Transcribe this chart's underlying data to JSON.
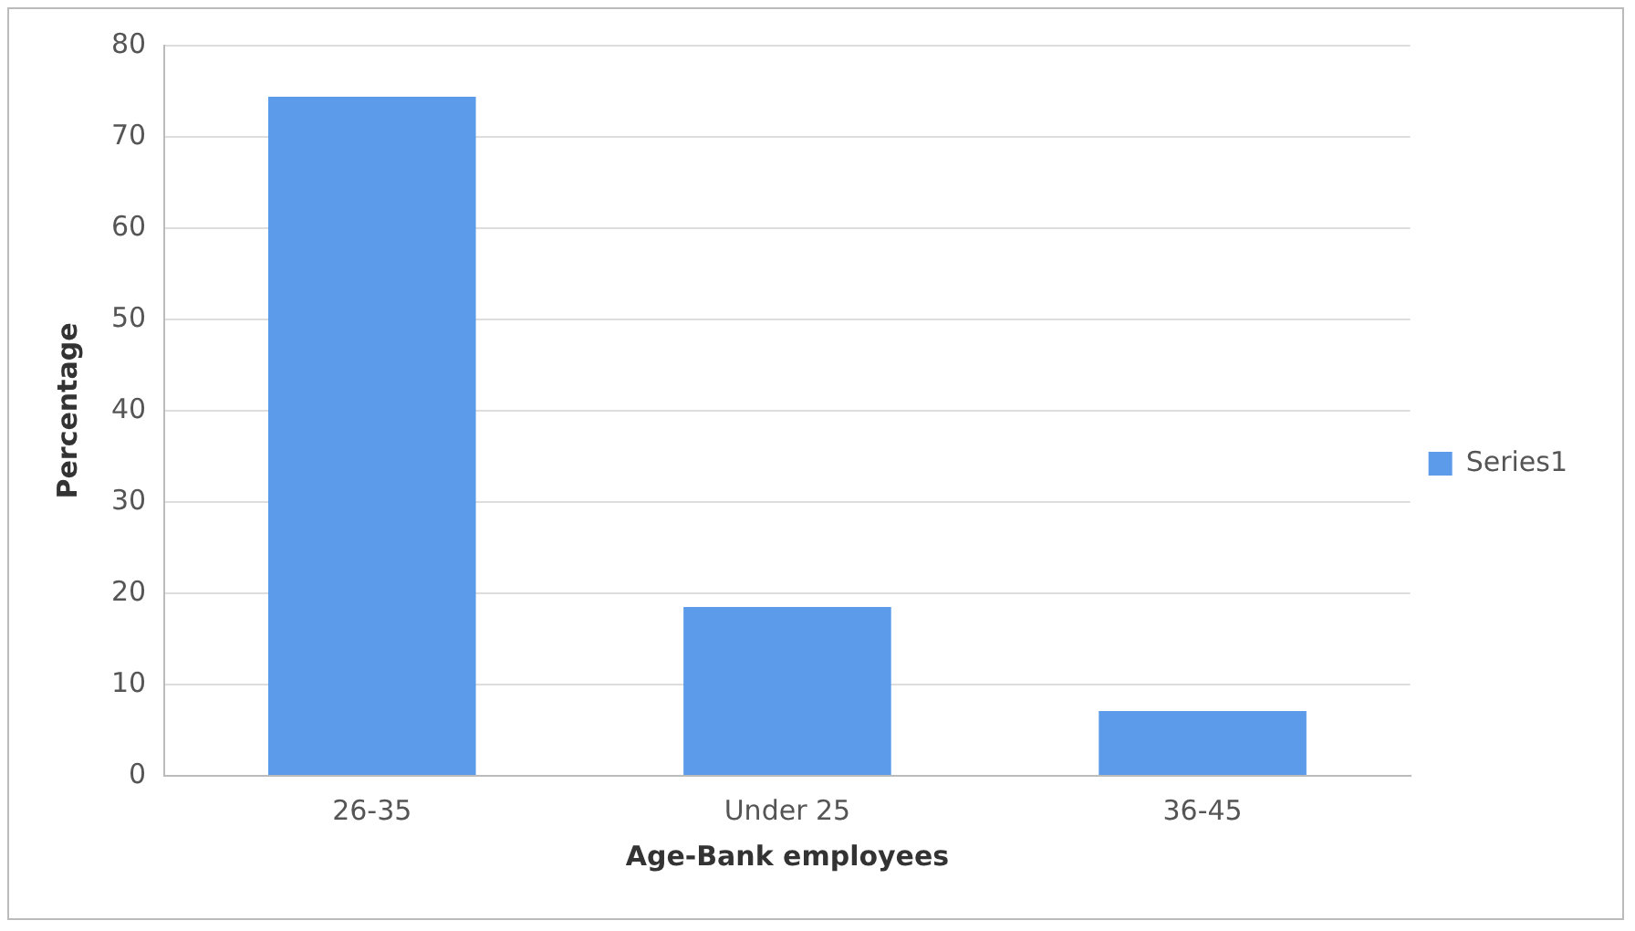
{
  "chart_data": {
    "type": "bar",
    "xlabel": "Age-Bank employees",
    "ylabel": "Percentage",
    "categories": [
      "26-35",
      "Under 25",
      "36-45"
    ],
    "series": [
      {
        "name": "Series1",
        "color": "#5b9bea",
        "values": [
          74.4,
          18.5,
          7.1
        ]
      }
    ],
    "ylim": [
      0,
      80
    ],
    "yticks": [
      0,
      10,
      20,
      30,
      40,
      50,
      60,
      70,
      80
    ],
    "grid": "y",
    "legend": "right"
  }
}
